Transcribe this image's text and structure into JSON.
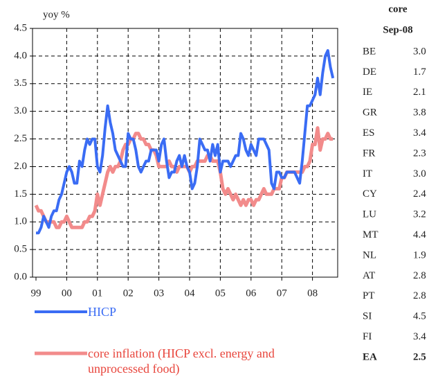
{
  "chart_data": {
    "type": "line",
    "y_label": "yoy %",
    "categories": [
      "99",
      null,
      null,
      null,
      null,
      null,
      null,
      null,
      null,
      null,
      null,
      null,
      "00",
      null,
      null,
      null,
      null,
      null,
      null,
      null,
      null,
      null,
      null,
      null,
      "01",
      null,
      null,
      null,
      null,
      null,
      null,
      null,
      null,
      null,
      null,
      null,
      "02",
      null,
      null,
      null,
      null,
      null,
      null,
      null,
      null,
      null,
      null,
      null,
      "03",
      null,
      null,
      null,
      null,
      null,
      null,
      null,
      null,
      null,
      null,
      null,
      "04",
      null,
      null,
      null,
      null,
      null,
      null,
      null,
      null,
      null,
      null,
      null,
      "05",
      null,
      null,
      null,
      null,
      null,
      null,
      null,
      null,
      null,
      null,
      null,
      "06",
      null,
      null,
      null,
      null,
      null,
      null,
      null,
      null,
      null,
      null,
      null,
      "07",
      null,
      null,
      null,
      null,
      null,
      null,
      null,
      null,
      null,
      null,
      null,
      "08",
      null,
      null,
      null,
      null,
      null,
      null,
      null,
      null
    ],
    "series": [
      {
        "name": "HICP",
        "color": "#3a6cf4",
        "values": [
          0.8,
          0.8,
          0.9,
          1.1,
          1.0,
          0.9,
          1.1,
          1.2,
          1.2,
          1.4,
          1.5,
          1.7,
          1.9,
          2.0,
          1.9,
          1.7,
          1.7,
          2.1,
          2.0,
          2.3,
          2.5,
          2.4,
          2.5,
          2.5,
          2.0,
          1.9,
          2.2,
          2.7,
          3.1,
          2.8,
          2.6,
          2.3,
          2.2,
          2.1,
          2.0,
          2.0,
          2.6,
          2.5,
          2.5,
          2.3,
          2.0,
          1.9,
          2.0,
          2.1,
          2.1,
          2.3,
          2.3,
          2.3,
          2.1,
          2.4,
          2.5,
          2.1,
          1.8,
          1.9,
          1.9,
          2.1,
          2.2,
          2.0,
          2.2,
          2.0,
          1.9,
          1.6,
          1.7,
          2.0,
          2.5,
          2.4,
          2.3,
          2.3,
          2.1,
          2.4,
          2.2,
          2.4,
          1.9,
          2.1,
          2.1,
          2.1,
          2.0,
          2.1,
          2.2,
          2.2,
          2.6,
          2.5,
          2.3,
          2.2,
          2.4,
          2.3,
          2.2,
          2.5,
          2.5,
          2.5,
          2.4,
          2.3,
          1.7,
          1.6,
          1.9,
          1.9,
          1.8,
          1.8,
          1.9,
          1.9,
          1.9,
          1.9,
          1.8,
          1.7,
          2.1,
          2.6,
          3.1,
          3.1,
          3.2,
          3.3,
          3.6,
          3.3,
          3.7,
          4.0,
          4.1,
          3.8,
          3.6
        ]
      },
      {
        "name": "core inflation (HICP excl. energy and unprocessed food)",
        "color": "#f28b8b",
        "values": [
          1.3,
          1.2,
          1.2,
          1.1,
          1.0,
          1.0,
          1.0,
          1.0,
          0.9,
          0.9,
          1.0,
          1.0,
          1.1,
          1.0,
          0.9,
          0.9,
          0.9,
          0.9,
          0.9,
          1.0,
          1.0,
          1.1,
          1.1,
          1.2,
          1.5,
          1.3,
          1.5,
          1.7,
          1.9,
          2.0,
          1.9,
          2.0,
          2.0,
          2.1,
          2.3,
          2.4,
          2.4,
          2.5,
          2.5,
          2.6,
          2.6,
          2.5,
          2.5,
          2.4,
          2.4,
          2.3,
          2.3,
          2.2,
          2.0,
          2.0,
          2.0,
          2.0,
          2.1,
          2.0,
          2.0,
          1.9,
          2.0,
          2.0,
          2.0,
          2.0,
          1.9,
          2.0,
          2.0,
          2.1,
          2.1,
          2.1,
          2.1,
          2.2,
          2.2,
          2.1,
          2.1,
          2.1,
          1.9,
          1.6,
          1.5,
          1.6,
          1.5,
          1.4,
          1.5,
          1.4,
          1.3,
          1.4,
          1.3,
          1.4,
          1.4,
          1.3,
          1.4,
          1.4,
          1.5,
          1.6,
          1.5,
          1.5,
          1.5,
          1.6,
          1.6,
          1.6,
          1.8,
          1.8,
          1.9,
          1.9,
          1.9,
          1.9,
          1.9,
          1.9,
          1.9,
          2.0,
          2.0,
          2.1,
          2.4,
          2.4,
          2.7,
          2.3,
          2.5,
          2.5,
          2.6,
          2.5,
          2.5
        ]
      }
    ],
    "ylim": [
      0,
      4.5
    ],
    "yticks": [
      {
        "value": 0,
        "label": "0.0"
      },
      0.5,
      {
        "value": 1,
        "label": "1.0"
      },
      1.5,
      {
        "value": 2,
        "label": "2.0"
      },
      2.5,
      {
        "value": 3,
        "label": "3.0"
      },
      3.5,
      {
        "value": 4,
        "label": "4.0"
      },
      4.5
    ],
    "grid": true
  },
  "table": {
    "header": [
      "core",
      "Sep-08"
    ],
    "rows": [
      [
        "BE",
        "3.0"
      ],
      [
        "DE",
        "1.7"
      ],
      [
        "IE",
        "2.1"
      ],
      [
        "GR",
        "3.8"
      ],
      [
        "ES",
        "3.4"
      ],
      [
        "FR",
        "2.3"
      ],
      [
        "IT",
        "3.0"
      ],
      [
        "CY",
        "2.4"
      ],
      [
        "LU",
        "3.2"
      ],
      [
        "MT",
        "4.4"
      ],
      [
        "NL",
        "1.9"
      ],
      [
        "AT",
        "2.8"
      ],
      [
        "PT",
        "2.8"
      ],
      [
        "SI",
        "4.5"
      ],
      [
        "FI",
        "3.4"
      ],
      [
        "EA",
        "2.5"
      ]
    ]
  }
}
